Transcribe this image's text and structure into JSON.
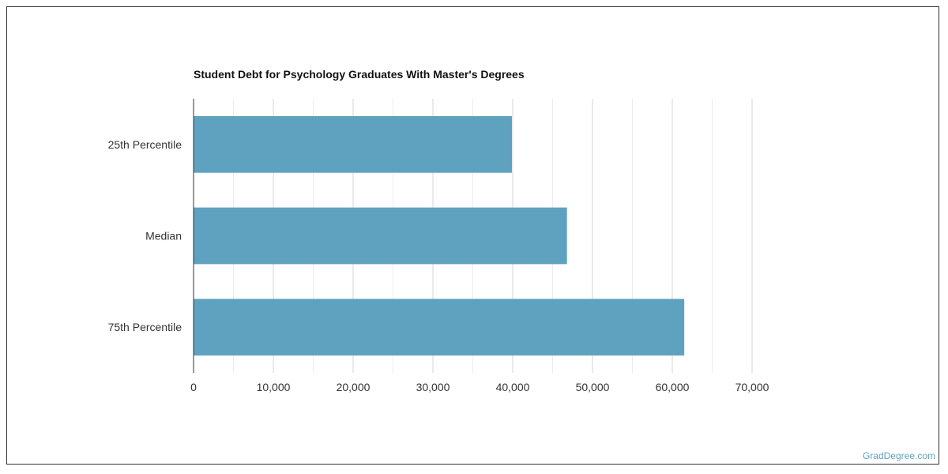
{
  "chart_data": {
    "type": "bar",
    "orientation": "horizontal",
    "title": "Student Debt for Psychology Graduates With Master's Degrees",
    "categories": [
      "25th Percentile",
      "Median",
      "75th Percentile"
    ],
    "values": [
      39900,
      46800,
      61500
    ],
    "xlim": [
      0,
      70000
    ],
    "xticks": [
      "0",
      "10,000",
      "20,000",
      "30,000",
      "40,000",
      "50,000",
      "60,000",
      "70,000"
    ],
    "tick_values": [
      0,
      10000,
      20000,
      30000,
      40000,
      50000,
      60000,
      70000
    ],
    "grid": true,
    "bar_color": "#5fa2bf"
  },
  "watermark": "GradDegree.com"
}
